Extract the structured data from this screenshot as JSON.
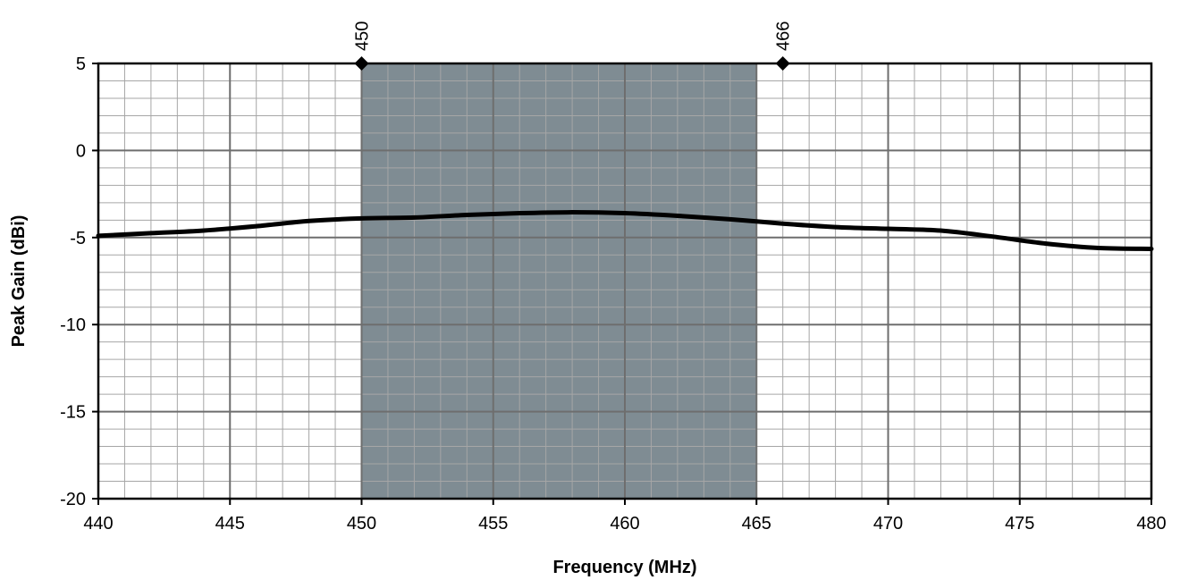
{
  "chart_data": {
    "type": "line",
    "title": "",
    "xlabel": "Frequency (MHz)",
    "ylabel": "Peak Gain (dBi)",
    "xlim": [
      440,
      480
    ],
    "ylim": [
      -20,
      5
    ],
    "x_major_ticks": [
      440,
      445,
      450,
      455,
      460,
      465,
      470,
      475,
      480
    ],
    "y_major_ticks": [
      -20,
      -15,
      -10,
      -5,
      0,
      5
    ],
    "x_tick_labels": [
      "440",
      "445",
      "450",
      "455",
      "460",
      "465",
      "470",
      "475",
      "480"
    ],
    "y_tick_labels": [
      "-20",
      "-15",
      "-10",
      "-5",
      "0",
      "5"
    ],
    "x_minor_step": 1,
    "y_minor_step": 1,
    "grid": true,
    "legend": "none",
    "highlight_band": {
      "x_start": 450,
      "x_end": 465,
      "color": "#7f8c93"
    },
    "markers": [
      {
        "x": 450,
        "y": 5,
        "label": "450"
      },
      {
        "x": 466,
        "y": 5,
        "label": "466"
      }
    ],
    "series": [
      {
        "color": "#000000",
        "x": [
          440,
          442,
          444,
          446,
          448,
          450,
          452,
          454,
          456,
          458,
          460,
          462,
          464,
          466,
          468,
          470,
          472,
          474,
          476,
          478,
          480
        ],
        "y": [
          -4.9,
          -4.75,
          -4.6,
          -4.35,
          -4.05,
          -3.9,
          -3.85,
          -3.7,
          -3.6,
          -3.55,
          -3.6,
          -3.75,
          -3.95,
          -4.2,
          -4.4,
          -4.5,
          -4.6,
          -4.95,
          -5.35,
          -5.6,
          -5.65
        ]
      }
    ]
  }
}
